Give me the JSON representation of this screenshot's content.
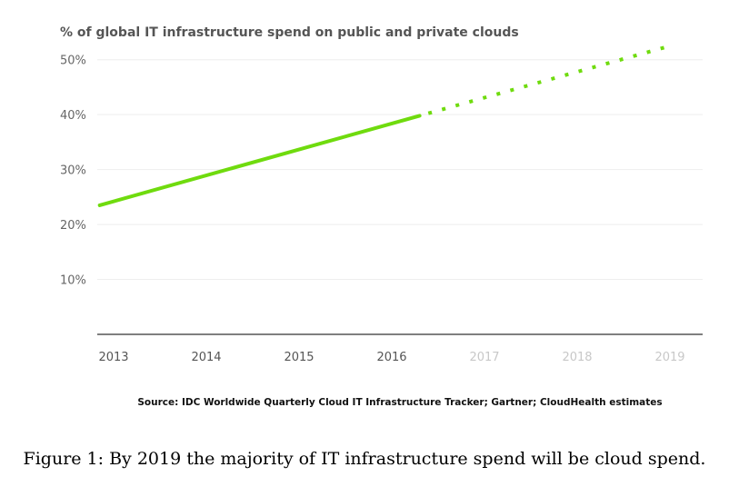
{
  "chart_data": {
    "type": "line",
    "title": "% of global IT infrastructure spend on public and private clouds",
    "x_tick_labels": [
      "2013",
      "2014",
      "2015",
      "2016",
      "2017",
      "2018",
      "2019"
    ],
    "x_tick_colors": [
      "#555555",
      "#555555",
      "#555555",
      "#555555",
      "#c8c8c8",
      "#c8c8c8",
      "#c8c8c8"
    ],
    "xlim": [
      2013,
      2019
    ],
    "y_tick_values": [
      10,
      20,
      30,
      40,
      50
    ],
    "y_tick_labels": [
      "10%",
      "20%",
      "30%",
      "40%",
      "50%"
    ],
    "ylim": [
      0,
      55
    ],
    "grid": true,
    "series": [
      {
        "style": "solid",
        "color": "#6fdb0e",
        "points": [
          {
            "x": 2012.85,
            "y": 23.5
          },
          {
            "x": 2016.3,
            "y": 39.8
          }
        ]
      },
      {
        "style": "dotted",
        "color": "#6fdb0e",
        "points": [
          {
            "x": 2016.3,
            "y": 39.8
          },
          {
            "x": 2019.0,
            "y": 52.5
          }
        ]
      }
    ],
    "source": "Source: IDC Worldwide Quarterly Cloud IT Infrastructure Tracker; Gartner; CloudHealth estimates"
  },
  "caption": "Figure 1: By 2019 the majority of IT infrastructure spend will be cloud spend."
}
